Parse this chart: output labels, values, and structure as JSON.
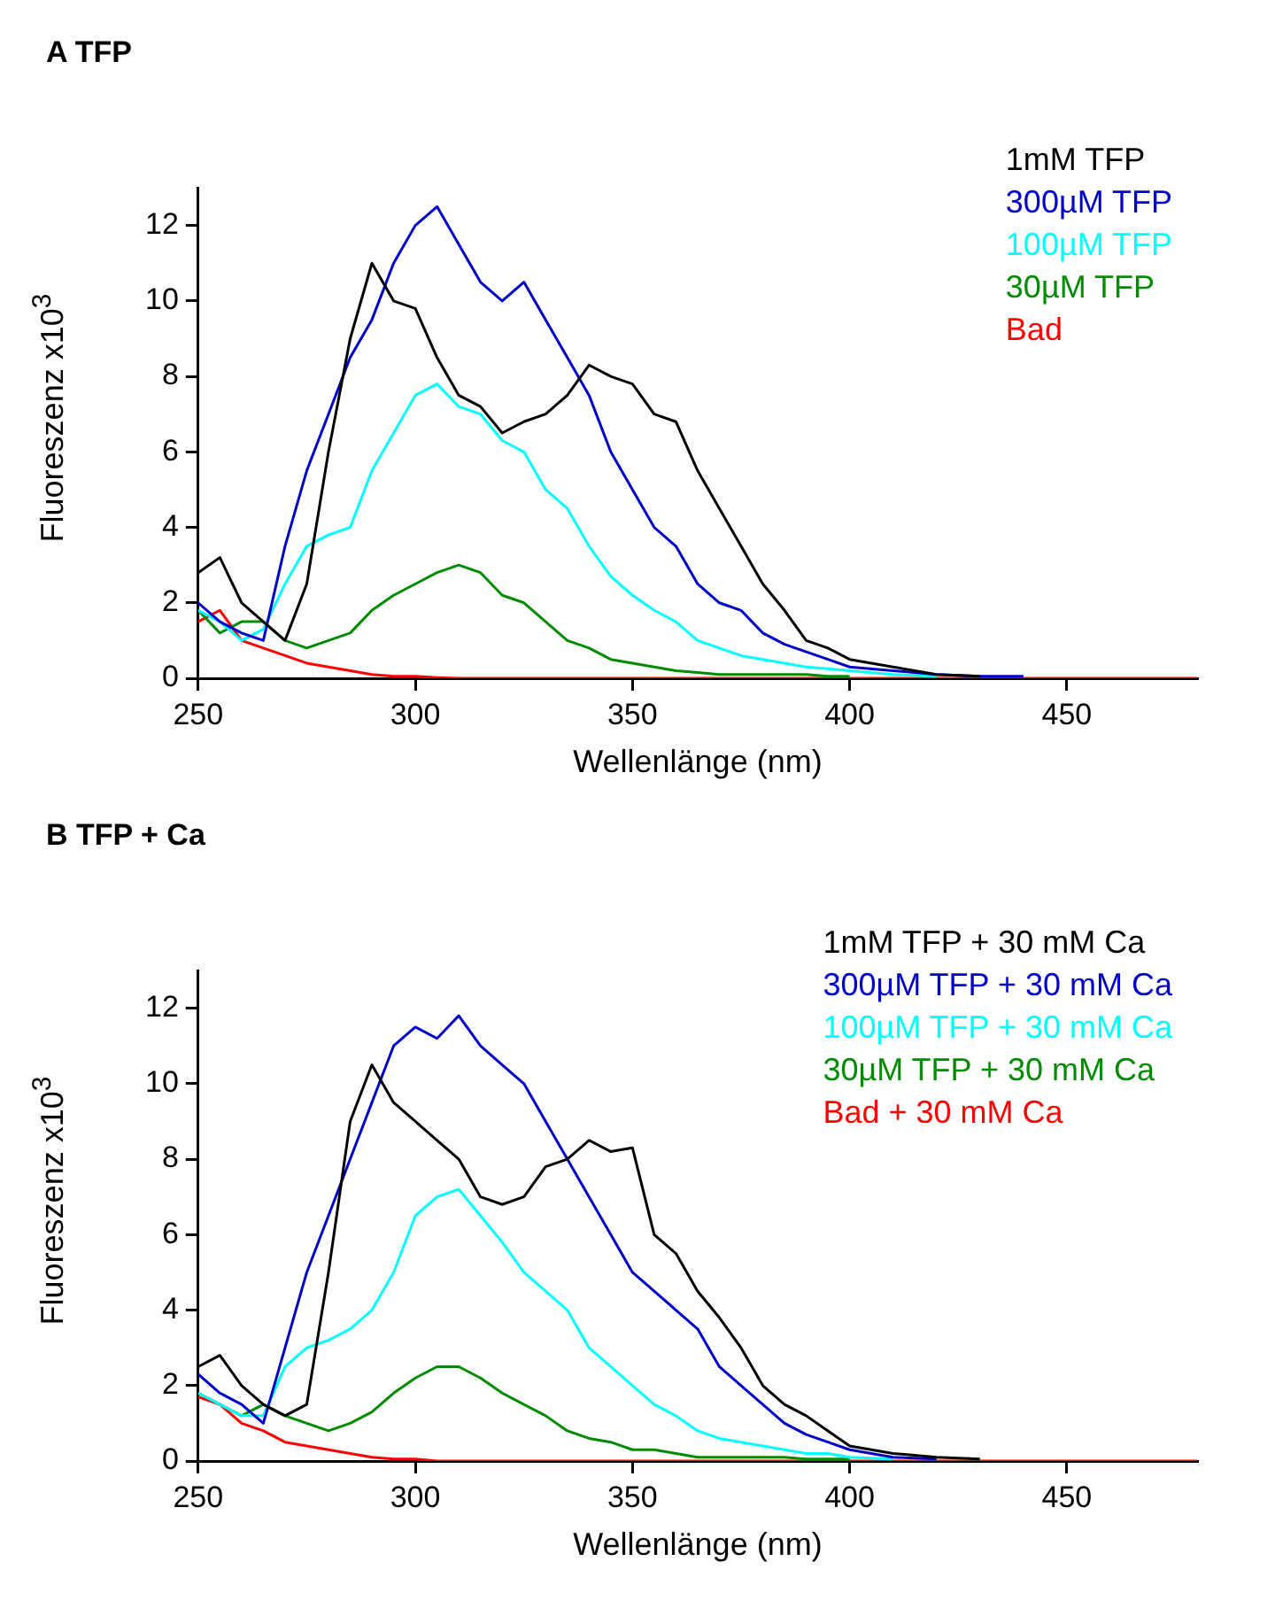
{
  "chart_data": [
    {
      "type": "line",
      "title": "A TFP",
      "xlabel": "Wellenlänge (nm)",
      "ylabel": "Fluoreszenz x10$^{3}$",
      "x": [
        250,
        255,
        260,
        265,
        270,
        275,
        280,
        285,
        290,
        295,
        300,
        305,
        310,
        315,
        320,
        325,
        330,
        335,
        340,
        345,
        350,
        355,
        360,
        365,
        370,
        375,
        380,
        385,
        390,
        395,
        400,
        410,
        420,
        430,
        440,
        450,
        460,
        470,
        480
      ],
      "series": [
        {
          "name": "1mM TFP",
          "color": "#000000",
          "values": [
            2.8,
            3.2,
            2.0,
            1.5,
            1.0,
            2.5,
            6.0,
            9.0,
            11.0,
            10.0,
            9.8,
            8.5,
            7.5,
            7.2,
            6.5,
            6.8,
            7.0,
            7.5,
            8.3,
            8.0,
            7.8,
            7.0,
            6.8,
            5.5,
            4.5,
            3.5,
            2.5,
            1.8,
            1.0,
            0.8,
            0.5,
            0.3,
            0.1,
            0.05,
            null,
            null,
            null,
            null,
            null
          ]
        },
        {
          "name": "300µM TFP",
          "color": "#0000c8",
          "values": [
            2.0,
            1.5,
            1.2,
            1.0,
            3.5,
            5.5,
            7.0,
            8.5,
            9.5,
            11.0,
            12.0,
            12.5,
            11.5,
            10.5,
            10.0,
            10.5,
            9.5,
            8.5,
            7.5,
            6.0,
            5.0,
            4.0,
            3.5,
            2.5,
            2.0,
            1.8,
            1.2,
            0.9,
            0.7,
            0.5,
            0.3,
            0.2,
            0.1,
            0.05,
            0.05,
            null,
            null,
            null,
            null
          ]
        },
        {
          "name": "100µM TFP",
          "color": "#00ffff",
          "values": [
            1.8,
            1.5,
            1.0,
            1.3,
            2.5,
            3.5,
            3.8,
            4.0,
            5.5,
            6.5,
            7.5,
            7.8,
            7.2,
            7.0,
            6.3,
            6.0,
            5.0,
            4.5,
            3.5,
            2.7,
            2.2,
            1.8,
            1.5,
            1.0,
            0.8,
            0.6,
            0.5,
            0.4,
            0.3,
            0.25,
            0.2,
            0.1,
            0.05,
            null,
            null,
            null,
            null,
            null,
            null
          ]
        },
        {
          "name": "30µM TFP",
          "color": "#008c00",
          "values": [
            1.8,
            1.2,
            1.5,
            1.5,
            1.0,
            0.8,
            1.0,
            1.2,
            1.8,
            2.2,
            2.5,
            2.8,
            3.0,
            2.8,
            2.2,
            2.0,
            1.5,
            1.0,
            0.8,
            0.5,
            0.4,
            0.3,
            0.2,
            0.15,
            0.1,
            0.1,
            0.1,
            0.1,
            0.1,
            0.05,
            0.05,
            null,
            null,
            null,
            null,
            null,
            null,
            null,
            null
          ]
        },
        {
          "name": "Bad",
          "color": "#ff0000",
          "values": [
            1.5,
            1.8,
            1.0,
            0.8,
            0.6,
            0.4,
            0.3,
            0.2,
            0.1,
            0.05,
            0.05,
            0.02,
            0,
            0,
            0,
            0,
            0,
            0,
            0,
            0,
            0,
            0,
            0,
            0,
            0,
            0,
            0,
            0,
            0,
            0,
            0,
            0,
            0,
            0,
            0,
            0,
            0,
            0,
            0
          ]
        }
      ],
      "xlim": [
        250,
        480
      ],
      "ylim": [
        0,
        13
      ],
      "xticks": [
        250,
        300,
        350,
        400,
        450
      ],
      "yticks": [
        0,
        2,
        4,
        6,
        8,
        10,
        12
      ],
      "grid": false,
      "legend": "top right"
    },
    {
      "type": "line",
      "title": "B TFP + Ca",
      "xlabel": "Wellenlänge (nm)",
      "ylabel": "Fluoreszenz x10$^{3}$",
      "x": [
        250,
        255,
        260,
        265,
        270,
        275,
        280,
        285,
        290,
        295,
        300,
        305,
        310,
        315,
        320,
        325,
        330,
        335,
        340,
        345,
        350,
        355,
        360,
        365,
        370,
        375,
        380,
        385,
        390,
        395,
        400,
        410,
        420,
        430,
        440,
        450,
        460,
        470,
        480
      ],
      "series": [
        {
          "name": "1mM TFP + 30 mM Ca",
          "color": "#000000",
          "values": [
            2.5,
            2.8,
            2.0,
            1.5,
            1.2,
            1.5,
            5.0,
            9.0,
            10.5,
            9.5,
            9.0,
            8.5,
            8.0,
            7.0,
            6.8,
            7.0,
            7.8,
            8.0,
            8.5,
            8.2,
            8.3,
            6.0,
            5.5,
            4.5,
            3.8,
            3.0,
            2.0,
            1.5,
            1.2,
            0.8,
            0.4,
            0.2,
            0.1,
            0.05,
            null,
            null,
            null,
            null,
            null
          ]
        },
        {
          "name": "300µM TFP + 30 mM Ca",
          "color": "#0000c8",
          "values": [
            2.3,
            1.8,
            1.5,
            1.0,
            3.0,
            5.0,
            6.5,
            8.0,
            9.5,
            11.0,
            11.5,
            11.2,
            11.8,
            11.0,
            10.5,
            10.0,
            9.0,
            8.0,
            7.0,
            6.0,
            5.0,
            4.5,
            4.0,
            3.5,
            2.5,
            2.0,
            1.5,
            1.0,
            0.7,
            0.5,
            0.3,
            0.1,
            0.05,
            null,
            null,
            null,
            null,
            null,
            null
          ]
        },
        {
          "name": "100µM TFP + 30 mM Ca",
          "color": "#00ffff",
          "values": [
            1.8,
            1.5,
            1.2,
            1.2,
            2.5,
            3.0,
            3.2,
            3.5,
            4.0,
            5.0,
            6.5,
            7.0,
            7.2,
            6.5,
            5.8,
            5.0,
            4.5,
            4.0,
            3.0,
            2.5,
            2.0,
            1.5,
            1.2,
            0.8,
            0.6,
            0.5,
            0.4,
            0.3,
            0.2,
            0.2,
            0.1,
            0.05,
            null,
            null,
            null,
            null,
            null,
            null,
            null
          ]
        },
        {
          "name": "30µM TFP + 30 mM Ca",
          "color": "#008c00",
          "values": [
            1.8,
            1.5,
            1.2,
            1.5,
            1.2,
            1.0,
            0.8,
            1.0,
            1.3,
            1.8,
            2.2,
            2.5,
            2.5,
            2.2,
            1.8,
            1.5,
            1.2,
            0.8,
            0.6,
            0.5,
            0.3,
            0.3,
            0.2,
            0.1,
            0.1,
            0.1,
            0.1,
            0.1,
            0.05,
            0.05,
            0.05,
            null,
            null,
            null,
            null,
            null,
            null,
            null,
            null
          ]
        },
        {
          "name": "Bad + 30 mM Ca",
          "color": "#ff0000",
          "values": [
            1.7,
            1.5,
            1.0,
            0.8,
            0.5,
            0.4,
            0.3,
            0.2,
            0.1,
            0.05,
            0.05,
            0,
            0,
            0,
            0,
            0,
            0,
            0,
            0,
            0,
            0,
            0,
            0,
            0,
            0,
            0,
            0,
            0,
            0,
            0,
            0,
            0,
            0,
            0,
            0,
            0,
            0,
            0,
            0
          ]
        }
      ],
      "xlim": [
        250,
        480
      ],
      "ylim": [
        0,
        13
      ],
      "xticks": [
        250,
        300,
        350,
        400,
        450
      ],
      "yticks": [
        0,
        2,
        4,
        6,
        8,
        10,
        12
      ],
      "grid": false,
      "legend": "top right"
    }
  ]
}
